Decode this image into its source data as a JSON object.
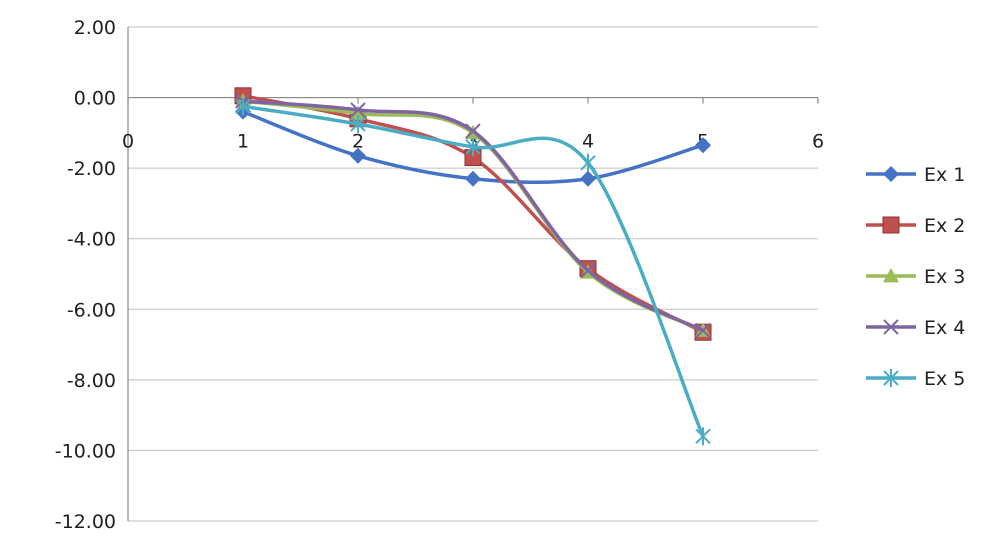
{
  "chart_data": {
    "type": "line",
    "title": "",
    "xlabel": "",
    "ylabel": "",
    "xlim": [
      0,
      6
    ],
    "ylim": [
      -12,
      2
    ],
    "x_ticks": [
      "0",
      "1",
      "2",
      "3",
      "4",
      "5",
      "6"
    ],
    "y_ticks": [
      "2.00",
      "0.00",
      "-2.00",
      "-4.00",
      "-6.00",
      "-8.00",
      "-10.00",
      "-12.00"
    ],
    "grid": "horizontal",
    "legend_position": "right",
    "smoothed": true,
    "x": [
      1,
      2,
      3,
      4,
      5
    ],
    "series": [
      {
        "name": "Ex 1",
        "values": [
          -0.4,
          -1.65,
          -2.3,
          -2.3,
          -1.35
        ],
        "color": "#4472C4",
        "marker": "diamond"
      },
      {
        "name": "Ex 2",
        "values": [
          0.05,
          -0.6,
          -1.7,
          -4.85,
          -6.65
        ],
        "color": "#C0504D",
        "marker": "square"
      },
      {
        "name": "Ex 3",
        "values": [
          -0.1,
          -0.45,
          -1.0,
          -4.95,
          -6.6
        ],
        "color": "#9BBB59",
        "marker": "triangle"
      },
      {
        "name": "Ex 4",
        "values": [
          -0.1,
          -0.35,
          -0.95,
          -4.9,
          -6.6
        ],
        "color": "#8064A2",
        "marker": "x"
      },
      {
        "name": "Ex 5",
        "values": [
          -0.25,
          -0.75,
          -1.4,
          -1.85,
          -9.6
        ],
        "color": "#4BACC6",
        "marker": "asterisk"
      }
    ]
  }
}
